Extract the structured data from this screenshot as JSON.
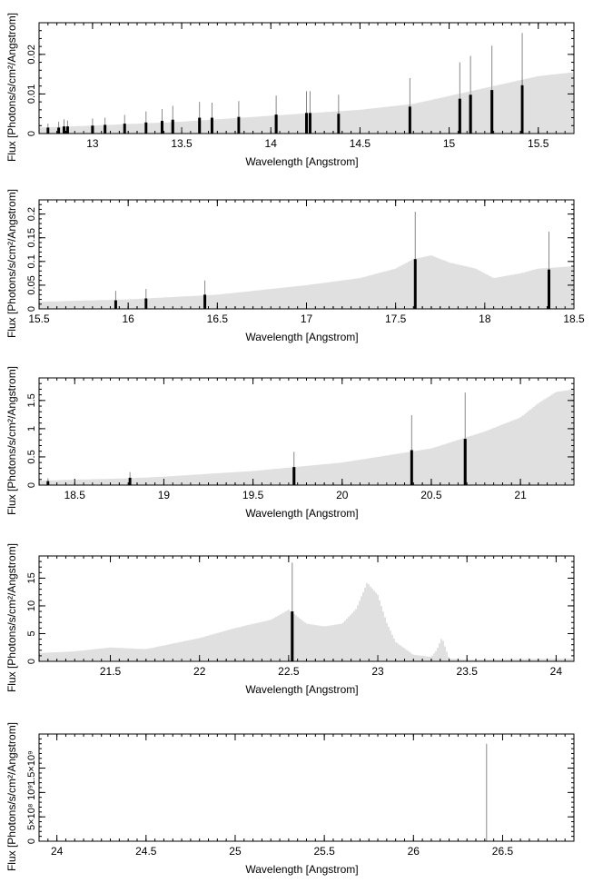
{
  "chart_data": [
    {
      "type": "bar",
      "xlabel": "Wavelength [Angstrom]",
      "ylabel": "Flux [Photons/s/cm²/Angstrom]",
      "xlim": [
        12.7,
        15.7
      ],
      "ylim": [
        0,
        0.028
      ],
      "xticks": [
        13,
        13.5,
        14,
        14.5,
        15,
        15.5
      ],
      "xtick_labels": [
        "13",
        "13.5",
        "14",
        "14.5",
        "15",
        "15.5"
      ],
      "yticks": [
        0,
        0.01,
        0.02
      ],
      "ytick_labels": [
        "0",
        "0.01",
        "0.02"
      ],
      "continuum_x": [
        12.7,
        13.0,
        13.5,
        14.0,
        14.5,
        14.8,
        15.0,
        15.3,
        15.5,
        15.7
      ],
      "continuum_y": [
        0.0015,
        0.002,
        0.003,
        0.0045,
        0.006,
        0.0075,
        0.0095,
        0.0125,
        0.0145,
        0.0155
      ],
      "lines_x": [
        12.75,
        12.81,
        12.84,
        12.86,
        13.0,
        13.07,
        13.18,
        13.3,
        13.39,
        13.45,
        13.6,
        13.67,
        13.82,
        14.03,
        14.2,
        14.22,
        14.38,
        14.78,
        15.06,
        15.12,
        15.24,
        15.41
      ],
      "lines_y": [
        0.0015,
        0.0015,
        0.0018,
        0.0018,
        0.002,
        0.0022,
        0.0025,
        0.0028,
        0.0032,
        0.0035,
        0.004,
        0.004,
        0.0042,
        0.0048,
        0.0052,
        0.0052,
        0.005,
        0.0068,
        0.0088,
        0.0098,
        0.011,
        0.0122
      ],
      "errors_y": [
        0.001,
        0.0015,
        0.0018,
        0.0015,
        0.0018,
        0.0018,
        0.0022,
        0.0028,
        0.003,
        0.0035,
        0.004,
        0.0038,
        0.004,
        0.0048,
        0.0055,
        0.0055,
        0.0048,
        0.0072,
        0.0092,
        0.0098,
        0.0112,
        0.0132
      ]
    },
    {
      "type": "bar",
      "xlabel": "Wavelength [Angstrom]",
      "ylabel": "Flux [Photons/s/cm²/Angstrom]",
      "xlim": [
        15.5,
        18.5
      ],
      "ylim": [
        0,
        0.23
      ],
      "xticks": [
        15.5,
        16,
        16.5,
        17,
        17.5,
        18,
        18.5
      ],
      "xtick_labels": [
        "15.5",
        "16",
        "16.5",
        "17",
        "17.5",
        "18",
        "18.5"
      ],
      "yticks": [
        0,
        0.05,
        0.1,
        0.15,
        0.2
      ],
      "ytick_labels": [
        "0",
        "0.05",
        "0.1",
        "0.15",
        "0.2"
      ],
      "continuum_x": [
        15.5,
        16.0,
        16.5,
        17.0,
        17.3,
        17.5,
        17.6,
        17.7,
        17.8,
        17.95,
        18.05,
        18.2,
        18.3,
        18.5
      ],
      "continuum_y": [
        0.015,
        0.02,
        0.03,
        0.05,
        0.065,
        0.085,
        0.105,
        0.113,
        0.098,
        0.085,
        0.065,
        0.075,
        0.085,
        0.09
      ],
      "lines_x": [
        15.93,
        16.1,
        16.43,
        17.61,
        18.36
      ],
      "lines_y": [
        0.018,
        0.022,
        0.03,
        0.105,
        0.083
      ],
      "errors_y": [
        0.02,
        0.02,
        0.03,
        0.1,
        0.08
      ]
    },
    {
      "type": "bar",
      "xlabel": "Wavelength [Angstrom]",
      "ylabel": "Flux [Photons/s/cm²/Angstrom]",
      "xlim": [
        18.3,
        21.3
      ],
      "ylim": [
        0,
        1.9
      ],
      "xticks": [
        18.5,
        19,
        19.5,
        20,
        20.5,
        21
      ],
      "xtick_labels": [
        "18.5",
        "19",
        "19.5",
        "20",
        "20.5",
        "21"
      ],
      "yticks": [
        0,
        0.5,
        1,
        1.5
      ],
      "ytick_labels": [
        "0",
        "0.5",
        "1",
        "1.5"
      ],
      "continuum_x": [
        18.3,
        18.8,
        19.0,
        19.5,
        20.0,
        20.5,
        20.8,
        21.0,
        21.1,
        21.2,
        21.3
      ],
      "continuum_y": [
        0.08,
        0.12,
        0.15,
        0.25,
        0.4,
        0.65,
        0.95,
        1.2,
        1.45,
        1.65,
        1.7
      ],
      "lines_x": [
        18.35,
        18.81,
        19.73,
        20.39,
        20.69
      ],
      "lines_y": [
        0.07,
        0.13,
        0.32,
        0.62,
        0.82
      ],
      "errors_y": [
        0.05,
        0.1,
        0.27,
        0.62,
        0.82
      ]
    },
    {
      "type": "bar",
      "xlabel": "Wavelength [Angstrom]",
      "ylabel": "Flux [Photons/s/cm²/Angstrom]",
      "xlim": [
        21.1,
        24.1
      ],
      "ylim": [
        0,
        19
      ],
      "xticks": [
        21.5,
        22,
        22.5,
        23,
        23.5,
        24
      ],
      "xtick_labels": [
        "21.5",
        "22",
        "22.5",
        "23",
        "23.5",
        "24"
      ],
      "yticks": [
        0,
        5,
        10,
        15
      ],
      "ytick_labels": [
        "0",
        "5",
        "10",
        "15"
      ],
      "continuum_x": [
        21.1,
        21.3,
        21.5,
        21.7,
        22.0,
        22.2,
        22.4,
        22.5,
        22.6,
        22.7,
        22.8,
        22.88,
        22.94,
        23.0,
        23.05,
        23.1,
        23.2,
        23.3,
        23.33,
        23.36,
        23.4,
        23.5,
        24.1
      ],
      "continuum_y": [
        1.5,
        1.8,
        2.5,
        2.2,
        4.2,
        6.0,
        7.5,
        9.3,
        6.8,
        6.3,
        6.8,
        9.5,
        14.2,
        12.0,
        7.0,
        3.5,
        1.2,
        0.8,
        2.0,
        4.3,
        0.5,
        0.3,
        0.5
      ],
      "lines_x": [
        22.52
      ],
      "lines_y": [
        9.0
      ],
      "errors_y": [
        8.8
      ]
    },
    {
      "type": "bar",
      "xlabel": "Wavelength [Angstrom]",
      "ylabel": "Flux [Photons/s/cm²/Angstrom]",
      "xlim": [
        23.9,
        26.9
      ],
      "ylim": [
        0,
        2200000000.0
      ],
      "xticks": [
        24,
        24.5,
        25,
        25.5,
        26,
        26.5
      ],
      "xtick_labels": [
        "24",
        "24.5",
        "25",
        "25.5",
        "26",
        "26.5"
      ],
      "yticks": [
        0,
        500000000.0,
        1000000000.0,
        1500000000.0
      ],
      "ytick_labels": [
        "0",
        "5×10⁸",
        "10⁹",
        "1.5×10⁹"
      ],
      "continuum_x": [],
      "continuum_y": [],
      "lines_x": [
        26.41
      ],
      "lines_y": [
        0
      ],
      "errors_y": [
        2000000000.0
      ]
    }
  ]
}
